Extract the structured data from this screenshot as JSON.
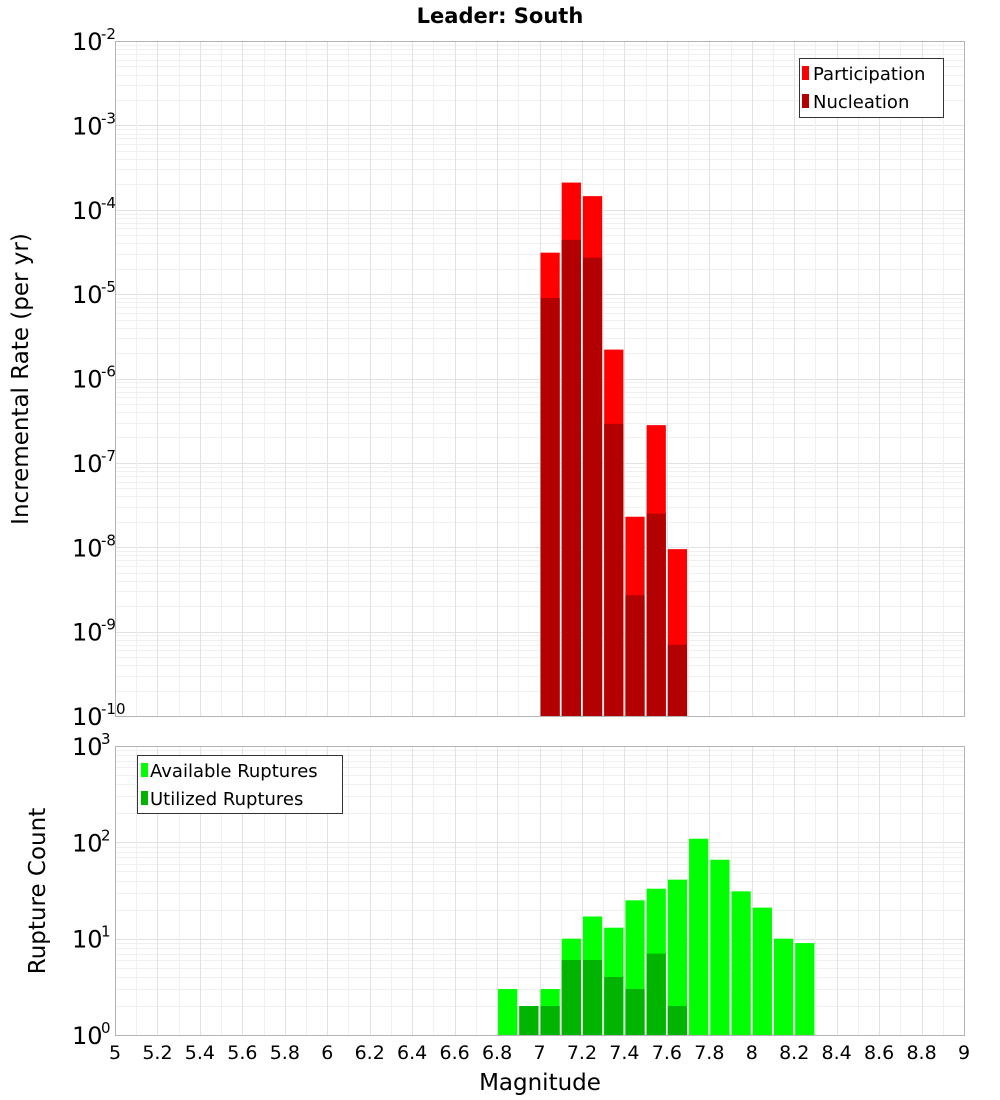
{
  "title": "Leader: South",
  "chart_data": [
    {
      "type": "bar",
      "ylabel": "Incremental Rate (per yr)",
      "yscale": "log",
      "ylim_exponents": [
        -10,
        -2
      ],
      "xlim": [
        5,
        9
      ],
      "bar_width": 0.1,
      "grid": true,
      "legend_position": "top-right",
      "series": [
        {
          "name": "Participation",
          "color": "#ff0000",
          "points": [
            [
              7.05,
              3.1e-05
            ],
            [
              7.15,
              0.00021
            ],
            [
              7.25,
              0.000145
            ],
            [
              7.35,
              2.2e-06
            ],
            [
              7.45,
              2.3e-08
            ],
            [
              7.55,
              2.8e-07
            ],
            [
              7.65,
              9.5e-09
            ]
          ]
        },
        {
          "name": "Nucleation",
          "color": "#b30000",
          "points": [
            [
              7.05,
              9e-06
            ],
            [
              7.15,
              4.4e-05
            ],
            [
              7.25,
              2.7e-05
            ],
            [
              7.35,
              2.9e-07
            ],
            [
              7.45,
              2.7e-09
            ],
            [
              7.55,
              2.5e-08
            ],
            [
              7.65,
              7e-10
            ]
          ]
        }
      ]
    },
    {
      "type": "bar",
      "ylabel": "Rupture Count",
      "xlabel": "Magnitude",
      "yscale": "log",
      "ylim_exponents": [
        0,
        3
      ],
      "xlim": [
        5,
        9
      ],
      "bar_width": 0.1,
      "grid": true,
      "legend_position": "top-left",
      "series": [
        {
          "name": "Available Ruptures",
          "color": "#00ff00",
          "points": [
            [
              6.45,
              1
            ],
            [
              6.75,
              1
            ],
            [
              6.85,
              3
            ],
            [
              6.95,
              2
            ],
            [
              7.05,
              3
            ],
            [
              7.15,
              10
            ],
            [
              7.25,
              17
            ],
            [
              7.35,
              13
            ],
            [
              7.45,
              25
            ],
            [
              7.55,
              33
            ],
            [
              7.65,
              41
            ],
            [
              7.75,
              109
            ],
            [
              7.85,
              66
            ],
            [
              7.95,
              31
            ],
            [
              8.05,
              21
            ],
            [
              8.15,
              10
            ],
            [
              8.25,
              9
            ]
          ]
        },
        {
          "name": "Utilized Ruptures",
          "color": "#00b400",
          "points": [
            [
              6.95,
              2
            ],
            [
              7.05,
              2
            ],
            [
              7.15,
              6
            ],
            [
              7.25,
              6
            ],
            [
              7.35,
              4
            ],
            [
              7.45,
              3
            ],
            [
              7.55,
              7
            ],
            [
              7.65,
              2
            ]
          ]
        }
      ]
    }
  ],
  "x_ticks": [
    "5",
    "5.2",
    "5.4",
    "5.6",
    "5.8",
    "6",
    "6.2",
    "6.4",
    "6.6",
    "6.8",
    "7",
    "7.2",
    "7.4",
    "7.6",
    "7.8",
    "8",
    "8.2",
    "8.4",
    "8.6",
    "8.8",
    "9"
  ],
  "x_tick_values": [
    5,
    5.2,
    5.4,
    5.6,
    5.8,
    6,
    6.2,
    6.4,
    6.6,
    6.8,
    7,
    7.2,
    7.4,
    7.6,
    7.8,
    8,
    8.2,
    8.4,
    8.6,
    8.8,
    9
  ],
  "top_y_ticks": [
    {
      "base": "10",
      "exp": "-2"
    },
    {
      "base": "10",
      "exp": "-3"
    },
    {
      "base": "10",
      "exp": "-4"
    },
    {
      "base": "10",
      "exp": "-5"
    },
    {
      "base": "10",
      "exp": "-6"
    },
    {
      "base": "10",
      "exp": "-7"
    },
    {
      "base": "10",
      "exp": "-8"
    },
    {
      "base": "10",
      "exp": "-9"
    },
    {
      "base": "10",
      "exp": "-10"
    }
  ],
  "bottom_y_ticks": [
    {
      "base": "10",
      "exp": "3"
    },
    {
      "base": "10",
      "exp": "2"
    },
    {
      "base": "10",
      "exp": "1"
    },
    {
      "base": "10",
      "exp": "0"
    }
  ]
}
